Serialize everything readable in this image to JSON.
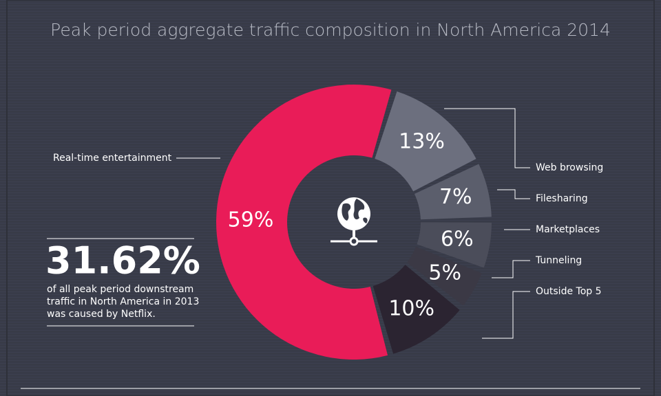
{
  "chart_data": {
    "type": "donut",
    "title": "Peak period aggregate traffic composition in North America 2014",
    "categories": [
      "Web browsing",
      "Filesharing",
      "Marketplaces",
      "Tunneling",
      "Outside Top 5",
      "Real-time entertainment"
    ],
    "values": [
      13,
      7,
      6,
      5,
      10,
      59
    ],
    "value_labels": [
      "13%",
      "7%",
      "6%",
      "5%",
      "10%",
      "59%"
    ],
    "colors": [
      "#6c6f7e",
      "#5b5e6c",
      "#4b4d5a",
      "#3b3945",
      "#2b2431",
      "#e91c58"
    ],
    "callout": {
      "figure": "31.62%",
      "lines": [
        "of all peak period downstream",
        "traffic in North America in 2013",
        "was caused by Netflix."
      ]
    }
  }
}
